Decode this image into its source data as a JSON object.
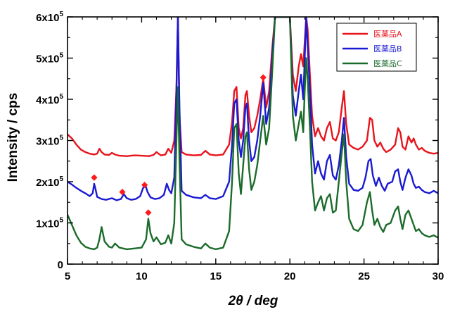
{
  "chart_data": {
    "type": "line",
    "xlabel_italic_part": "2θ",
    "xlabel_rest": " / deg",
    "ylabel": "Intensity / cps",
    "xlim": [
      5,
      30
    ],
    "ylim": [
      0,
      600000
    ],
    "x_ticks": [
      5,
      10,
      15,
      20,
      25,
      30
    ],
    "y_ticks": [
      {
        "value": 0,
        "mantissa": "0",
        "exp": ""
      },
      {
        "value": 100000,
        "mantissa": "1x10",
        "exp": "5"
      },
      {
        "value": 200000,
        "mantissa": "2x10",
        "exp": "5"
      },
      {
        "value": 300000,
        "mantissa": "3x10",
        "exp": "5"
      },
      {
        "value": 400000,
        "mantissa": "4x10",
        "exp": "5"
      },
      {
        "value": 500000,
        "mantissa": "5x10",
        "exp": "5"
      },
      {
        "value": 600000,
        "mantissa": "6x10",
        "exp": "5"
      }
    ],
    "legend_position": "top-right",
    "marker_color": "#ff1a1a",
    "series": [
      {
        "name": "医薬品A",
        "color": "#e8141c",
        "x": [
          5,
          5.3,
          5.6,
          5.9,
          6.2,
          6.5,
          6.8,
          7.0,
          7.15,
          7.3,
          7.5,
          7.8,
          8.0,
          8.2,
          8.5,
          9.0,
          9.5,
          10.0,
          10.5,
          10.8,
          11.0,
          11.3,
          11.6,
          11.8,
          12.0,
          12.2,
          12.35,
          12.45,
          12.55,
          12.7,
          13.0,
          13.5,
          14.0,
          14.3,
          14.6,
          15.0,
          15.5,
          15.9,
          16.1,
          16.25,
          16.4,
          16.55,
          16.7,
          16.85,
          17.0,
          17.1,
          17.25,
          17.4,
          17.6,
          17.8,
          18.0,
          18.2,
          18.4,
          18.6,
          18.8,
          19.0,
          19.2,
          19.4,
          19.6,
          19.8,
          20.0,
          20.2,
          20.4,
          20.6,
          20.75,
          20.9,
          21.0,
          21.1,
          21.2,
          21.35,
          21.5,
          21.7,
          21.9,
          22.1,
          22.3,
          22.5,
          22.7,
          22.9,
          23.1,
          23.3,
          23.5,
          23.65,
          23.8,
          24.0,
          24.3,
          24.6,
          24.9,
          25.2,
          25.4,
          25.55,
          25.7,
          25.9,
          26.1,
          26.3,
          26.5,
          26.8,
          27.1,
          27.3,
          27.45,
          27.6,
          27.8,
          28.0,
          28.2,
          28.35,
          28.5,
          28.7,
          28.9,
          29.1,
          29.4,
          29.7,
          30.0
        ],
        "y": [
          315000,
          305000,
          290000,
          278000,
          272000,
          268000,
          266000,
          268000,
          280000,
          272000,
          266000,
          265000,
          270000,
          266000,
          263000,
          262000,
          264000,
          263000,
          262000,
          265000,
          272000,
          264000,
          266000,
          280000,
          270000,
          300000,
          430000,
          600000,
          360000,
          272000,
          266000,
          264000,
          265000,
          275000,
          266000,
          264000,
          266000,
          290000,
          345000,
          420000,
          430000,
          330000,
          305000,
          330000,
          410000,
          420000,
          360000,
          320000,
          330000,
          360000,
          400000,
          450000,
          380000,
          420000,
          520000,
          600000,
          600000,
          600000,
          600000,
          600000,
          600000,
          460000,
          420000,
          480000,
          510000,
          480000,
          540000,
          600000,
          570000,
          460000,
          360000,
          310000,
          330000,
          310000,
          300000,
          330000,
          345000,
          305000,
          300000,
          320000,
          380000,
          420000,
          340000,
          290000,
          282000,
          278000,
          285000,
          300000,
          355000,
          350000,
          300000,
          285000,
          295000,
          280000,
          272000,
          278000,
          290000,
          330000,
          320000,
          285000,
          278000,
          310000,
          295000,
          305000,
          290000,
          278000,
          282000,
          275000,
          270000,
          268000,
          270000
        ]
      },
      {
        "name": "医薬品B",
        "color": "#1a1ad2",
        "x": [
          5,
          5.3,
          5.6,
          5.9,
          6.2,
          6.5,
          6.7,
          6.8,
          6.9,
          7.0,
          7.3,
          7.6,
          8.0,
          8.3,
          8.6,
          8.8,
          9.0,
          9.3,
          9.6,
          9.9,
          10.1,
          10.25,
          10.4,
          10.6,
          10.9,
          11.2,
          11.5,
          11.7,
          11.85,
          12.0,
          12.2,
          12.35,
          12.45,
          12.55,
          12.7,
          13.0,
          13.5,
          14.0,
          14.3,
          14.6,
          15.0,
          15.5,
          15.9,
          16.1,
          16.25,
          16.4,
          16.55,
          16.7,
          16.85,
          17.0,
          17.1,
          17.25,
          17.4,
          17.6,
          17.8,
          18.0,
          18.2,
          18.4,
          18.6,
          18.8,
          19.0,
          19.2,
          19.4,
          19.6,
          19.8,
          20.0,
          20.2,
          20.4,
          20.6,
          20.75,
          20.9,
          21.0,
          21.1,
          21.2,
          21.35,
          21.5,
          21.7,
          21.9,
          22.1,
          22.3,
          22.5,
          22.7,
          22.9,
          23.1,
          23.3,
          23.5,
          23.65,
          23.8,
          24.0,
          24.3,
          24.6,
          24.9,
          25.1,
          25.3,
          25.45,
          25.6,
          25.8,
          26.0,
          26.2,
          26.4,
          26.6,
          26.9,
          27.1,
          27.3,
          27.45,
          27.6,
          27.8,
          28.0,
          28.2,
          28.35,
          28.5,
          28.7,
          28.9,
          29.1,
          29.4,
          29.7,
          30.0
        ],
        "y": [
          200000,
          193000,
          185000,
          178000,
          172000,
          165000,
          172000,
          195000,
          180000,
          163000,
          158000,
          156000,
          160000,
          155000,
          158000,
          170000,
          160000,
          156000,
          158000,
          165000,
          185000,
          192000,
          175000,
          162000,
          158000,
          160000,
          168000,
          195000,
          180000,
          172000,
          210000,
          420000,
          600000,
          380000,
          178000,
          168000,
          162000,
          160000,
          168000,
          160000,
          158000,
          165000,
          200000,
          290000,
          390000,
          400000,
          300000,
          260000,
          300000,
          380000,
          390000,
          300000,
          250000,
          260000,
          300000,
          360000,
          440000,
          340000,
          380000,
          500000,
          600000,
          600000,
          600000,
          600000,
          600000,
          600000,
          410000,
          360000,
          420000,
          460000,
          400000,
          500000,
          600000,
          530000,
          420000,
          290000,
          220000,
          250000,
          220000,
          205000,
          250000,
          265000,
          215000,
          205000,
          240000,
          300000,
          355000,
          260000,
          195000,
          180000,
          178000,
          185000,
          210000,
          250000,
          255000,
          215000,
          190000,
          210000,
          190000,
          178000,
          195000,
          200000,
          225000,
          230000,
          200000,
          180000,
          210000,
          230000,
          215000,
          195000,
          185000,
          188000,
          180000,
          175000,
          172000,
          178000,
          172000
        ]
      },
      {
        "name": "医薬品C",
        "color": "#1b6b2a",
        "x": [
          5,
          5.3,
          5.6,
          5.9,
          6.2,
          6.5,
          6.8,
          7.0,
          7.15,
          7.3,
          7.5,
          7.8,
          8.0,
          8.2,
          8.5,
          9.0,
          9.5,
          10.0,
          10.3,
          10.45,
          10.6,
          10.8,
          11.0,
          11.3,
          11.6,
          11.8,
          12.0,
          12.2,
          12.35,
          12.45,
          12.55,
          12.7,
          13.0,
          13.5,
          14.0,
          14.3,
          14.6,
          15.0,
          15.5,
          15.9,
          16.1,
          16.25,
          16.4,
          16.55,
          16.7,
          16.85,
          17.0,
          17.1,
          17.25,
          17.4,
          17.6,
          17.8,
          18.0,
          18.2,
          18.4,
          18.6,
          18.8,
          19.0,
          19.2,
          19.4,
          19.6,
          19.8,
          20.0,
          20.2,
          20.4,
          20.6,
          20.75,
          20.9,
          21.0,
          21.1,
          21.2,
          21.35,
          21.5,
          21.7,
          21.9,
          22.1,
          22.3,
          22.5,
          22.7,
          22.9,
          23.1,
          23.3,
          23.5,
          23.65,
          23.8,
          24.0,
          24.3,
          24.6,
          24.9,
          25.2,
          25.4,
          25.55,
          25.7,
          25.9,
          26.1,
          26.3,
          26.5,
          26.8,
          27.1,
          27.3,
          27.45,
          27.6,
          27.8,
          28.0,
          28.2,
          28.35,
          28.5,
          28.7,
          28.9,
          29.1,
          29.4,
          29.7,
          30.0
        ],
        "y": [
          120000,
          95000,
          70000,
          52000,
          42000,
          38000,
          36000,
          40000,
          60000,
          90000,
          55000,
          42000,
          40000,
          50000,
          40000,
          36000,
          38000,
          40000,
          60000,
          110000,
          75000,
          55000,
          65000,
          48000,
          52000,
          70000,
          50000,
          100000,
          300000,
          430000,
          250000,
          60000,
          48000,
          42000,
          38000,
          50000,
          40000,
          36000,
          40000,
          80000,
          200000,
          330000,
          340000,
          220000,
          170000,
          240000,
          310000,
          320000,
          230000,
          180000,
          200000,
          240000,
          300000,
          360000,
          290000,
          330000,
          460000,
          600000,
          600000,
          600000,
          600000,
          600000,
          600000,
          360000,
          300000,
          340000,
          370000,
          320000,
          420000,
          500000,
          450000,
          330000,
          200000,
          130000,
          150000,
          165000,
          130000,
          160000,
          170000,
          125000,
          130000,
          200000,
          270000,
          315000,
          200000,
          110000,
          85000,
          80000,
          95000,
          150000,
          175000,
          130000,
          95000,
          110000,
          90000,
          78000,
          95000,
          100000,
          130000,
          140000,
          110000,
          85000,
          120000,
          130000,
          110000,
          95000,
          80000,
          85000,
          75000,
          70000,
          66000,
          70000,
          64000
        ]
      }
    ],
    "markers": [
      {
        "x": 6.8,
        "y": 210000
      },
      {
        "x": 8.7,
        "y": 175000
      },
      {
        "x": 10.2,
        "y": 192000
      },
      {
        "x": 10.45,
        "y": 125000
      },
      {
        "x": 18.2,
        "y": 453000
      }
    ]
  }
}
